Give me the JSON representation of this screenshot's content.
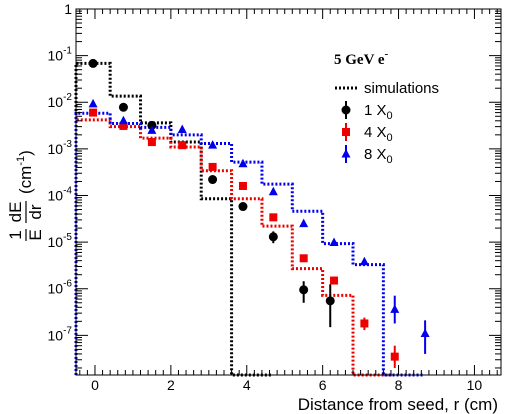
{
  "chart_data": {
    "type": "scatter",
    "title": "",
    "annotation": {
      "text": "5 GeV e",
      "sup": "-"
    },
    "xlabel": "Distance from seed, r (cm)",
    "ylabel": {
      "prefix": "1 dE",
      "fraction_num": "dE",
      "fraction_den": "dr",
      "one_num": "1",
      "one_den": "E",
      "unit": "(cm",
      "unit_sup": "-1",
      "unit_close": ")"
    },
    "xlim": [
      -0.5,
      10.7
    ],
    "ylim_log10": [
      -7.85,
      0
    ],
    "y_log": true,
    "x_ticks": [
      "0",
      "2",
      "4",
      "6",
      "8",
      "10"
    ],
    "y_ticks": [
      {
        "base": "1",
        "exp": ""
      },
      {
        "base": "10",
        "exp": "-1"
      },
      {
        "base": "10",
        "exp": "-2"
      },
      {
        "base": "10",
        "exp": "-3"
      },
      {
        "base": "10",
        "exp": "-4"
      },
      {
        "base": "10",
        "exp": "-5"
      },
      {
        "base": "10",
        "exp": "-6"
      },
      {
        "base": "10",
        "exp": "-7"
      }
    ],
    "legend": {
      "position": "top-right",
      "entries": [
        {
          "label": "simulations",
          "sub": "",
          "style": "dotted-line",
          "color": "#000000"
        },
        {
          "label": "1 X",
          "sub": "0",
          "style": "circle",
          "color": "#000000"
        },
        {
          "label": "4 X",
          "sub": "0",
          "style": "square",
          "color": "#ee0000"
        },
        {
          "label": "8 X",
          "sub": "0",
          "style": "triangle",
          "color": "#0000ee"
        }
      ]
    },
    "simulations": [
      {
        "name": "1 X0",
        "color": "#000000",
        "edges": [
          -0.5,
          0.4,
          1.2,
          2.0,
          2.8,
          3.6
        ],
        "values": [
          0.068,
          0.0135,
          0.0036,
          0.0014,
          8.5e-05,
          1e-08
        ]
      },
      {
        "name": "4 X0",
        "color": "#ee0000",
        "edges": [
          -0.5,
          0.4,
          1.2,
          2.0,
          2.8,
          3.6,
          4.4,
          5.2,
          6.0,
          6.8
        ],
        "values": [
          0.0042,
          0.003,
          0.0017,
          0.0011,
          0.00034,
          8.5e-05,
          2.2e-05,
          2.7e-06,
          7.2e-07,
          1e-08
        ]
      },
      {
        "name": "8 X0",
        "color": "#0000ee",
        "edges": [
          -0.5,
          0.4,
          1.2,
          2.0,
          2.8,
          3.6,
          4.4,
          5.2,
          6.0,
          6.8,
          7.6
        ],
        "values": [
          0.0058,
          0.0035,
          0.0029,
          0.002,
          0.0013,
          0.00052,
          0.000175,
          4.6e-05,
          9.3e-06,
          3.3e-06,
          1e-08
        ]
      }
    ],
    "series": [
      {
        "name": "1 X0",
        "marker": "circle",
        "color": "#000000",
        "x": [
          -0.05,
          0.75,
          1.5,
          3.1,
          3.9,
          4.7,
          5.5,
          6.2
        ],
        "y": [
          0.068,
          0.0078,
          0.0032,
          0.00022,
          5.8e-05,
          1.3e-05,
          9.5e-07,
          5.5e-07
        ],
        "err_lo": [
          0,
          0,
          0,
          0,
          0,
          3.5e-06,
          4.5e-07,
          4e-07
        ],
        "err_hi": [
          0,
          0,
          0,
          0,
          0,
          4e-06,
          5e-07,
          7e-07
        ]
      },
      {
        "name": "4 X0",
        "marker": "square",
        "color": "#ee0000",
        "x": [
          -0.05,
          0.75,
          1.5,
          2.3,
          3.1,
          3.9,
          4.7,
          5.5,
          6.3,
          7.1,
          7.9
        ],
        "y": [
          0.006,
          0.0031,
          0.0014,
          0.0012,
          0.00041,
          0.00016,
          3.4e-05,
          4.5e-06,
          1.5e-06,
          1.8e-07,
          3.5e-08
        ],
        "err_lo": [
          0,
          0,
          0,
          0,
          0,
          0,
          0,
          0,
          0,
          5e-08,
          1.5e-08
        ],
        "err_hi": [
          0,
          0,
          0,
          0,
          0,
          0,
          0,
          0,
          0,
          6e-08,
          2.5e-08
        ]
      },
      {
        "name": "8 X0",
        "marker": "triangle",
        "color": "#0000ee",
        "x": [
          -0.05,
          0.75,
          1.5,
          2.3,
          3.1,
          3.9,
          4.7,
          5.5,
          6.3,
          7.1,
          7.9,
          8.7
        ],
        "y": [
          0.0092,
          0.004,
          0.0025,
          0.0026,
          0.0012,
          0.00048,
          0.00012,
          2.5e-05,
          9.8e-06,
          3.8e-06,
          3.6e-07,
          1.1e-07
        ],
        "err_lo": [
          0,
          0,
          0,
          0,
          0,
          0,
          0,
          0,
          0,
          0,
          1.8e-07,
          7e-08
        ],
        "err_hi": [
          0,
          0,
          0,
          0,
          0,
          0,
          0,
          0,
          0,
          0,
          3.5e-07,
          1e-07
        ]
      }
    ]
  }
}
